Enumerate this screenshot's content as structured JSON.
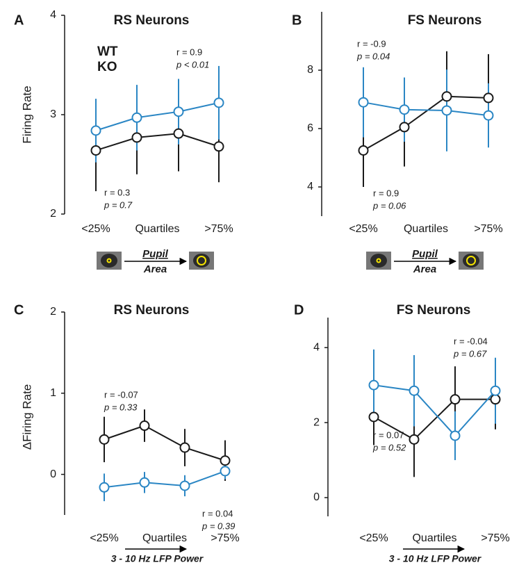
{
  "chart_data": [
    {
      "type": "line",
      "panel": "A",
      "title": "RS Neurons",
      "ylabel": "Firing Rate",
      "xlabel": "Quartiles",
      "categories": [
        "<25%",
        null,
        null,
        ">75%"
      ],
      "ylim": [
        2,
        4
      ],
      "yticks": [
        2,
        3,
        4
      ],
      "legend": "upper left",
      "series": [
        {
          "name": "WT",
          "color": "#1a1a1a",
          "values": [
            2.64,
            2.77,
            2.81,
            2.68
          ],
          "errors": [
            0.41,
            0.37,
            0.38,
            0.36
          ]
        },
        {
          "name": "KO",
          "color": "#2a86c4",
          "values": [
            2.84,
            2.97,
            3.03,
            3.12
          ],
          "errors": [
            0.32,
            0.33,
            0.33,
            0.37
          ]
        }
      ],
      "annotations": [
        {
          "r": "r = 0.9",
          "p": "p < 0.01",
          "color": "#2a86c4"
        },
        {
          "r": "r = 0.3",
          "p": "p = 0.7",
          "color": "#1a1a1a"
        }
      ],
      "pupil_labels": [
        "Pupil",
        "Area"
      ]
    },
    {
      "type": "line",
      "panel": "B",
      "title": "FS Neurons",
      "xlabel": "Quartiles",
      "categories": [
        "<25%",
        null,
        null,
        ">75%"
      ],
      "ylim": [
        3,
        10
      ],
      "yticks": [
        4,
        6,
        8
      ],
      "series": [
        {
          "name": "WT",
          "color": "#1a1a1a",
          "values": [
            5.25,
            6.05,
            7.1,
            7.05
          ],
          "errors": [
            1.25,
            1.35,
            1.55,
            1.5
          ]
        },
        {
          "name": "KO",
          "color": "#2a86c4",
          "values": [
            6.9,
            6.65,
            6.62,
            6.45
          ],
          "errors": [
            1.2,
            1.1,
            1.4,
            1.1
          ]
        }
      ],
      "annotations": [
        {
          "r": "r = -0.9",
          "p": "p = 0.04",
          "color": "#2a86c4"
        },
        {
          "r": "r = 0.9",
          "p": "p = 0.06",
          "color": "#1a1a1a"
        }
      ],
      "pupil_labels": [
        "Pupil",
        "Area"
      ]
    },
    {
      "type": "line",
      "panel": "C",
      "title": "RS Neurons",
      "ylabel": "ΔFiring Rate",
      "xlabel": "Quartiles",
      "categories": [
        "<25%",
        null,
        null,
        ">75%"
      ],
      "ylim": [
        -0.5,
        2
      ],
      "yticks": [
        0,
        1,
        2
      ],
      "series": [
        {
          "name": "WT",
          "color": "#1a1a1a",
          "values": [
            0.43,
            0.6,
            0.33,
            0.17
          ],
          "errors": [
            0.28,
            0.2,
            0.23,
            0.25
          ]
        },
        {
          "name": "KO",
          "color": "#2a86c4",
          "values": [
            -0.16,
            -0.1,
            -0.14,
            0.04
          ],
          "errors": [
            0.17,
            0.13,
            0.13,
            0.1
          ]
        }
      ],
      "annotations": [
        {
          "r": "r = -0.07",
          "p": "p = 0.33",
          "color": "#1a1a1a"
        },
        {
          "r": "r = 0.04",
          "p": "p = 0.39",
          "color": "#2a86c4"
        }
      ],
      "arrow_label": "3 - 10 Hz LFP Power"
    },
    {
      "type": "line",
      "panel": "D",
      "title": "FS Neurons",
      "xlabel": "Quartiles",
      "categories": [
        "<25%",
        null,
        null,
        ">75%"
      ],
      "ylim": [
        -0.5,
        4.8
      ],
      "yticks": [
        0,
        2,
        4
      ],
      "series": [
        {
          "name": "WT",
          "color": "#1a1a1a",
          "values": [
            2.15,
            1.55,
            2.62,
            2.62
          ],
          "errors": [
            0.75,
            1.0,
            0.88,
            0.8
          ]
        },
        {
          "name": "KO",
          "color": "#2a86c4",
          "values": [
            3.0,
            2.85,
            1.65,
            2.85
          ],
          "errors": [
            0.95,
            0.95,
            0.65,
            0.88
          ]
        }
      ],
      "annotations": [
        {
          "r": "r = -0.04",
          "p": "p = 0.67",
          "color": "#2a86c4"
        },
        {
          "r": "r = 0.07",
          "p": "p = 0.52",
          "color": "#1a1a1a"
        }
      ],
      "arrow_label": "3 - 10 Hz LFP Power"
    }
  ]
}
